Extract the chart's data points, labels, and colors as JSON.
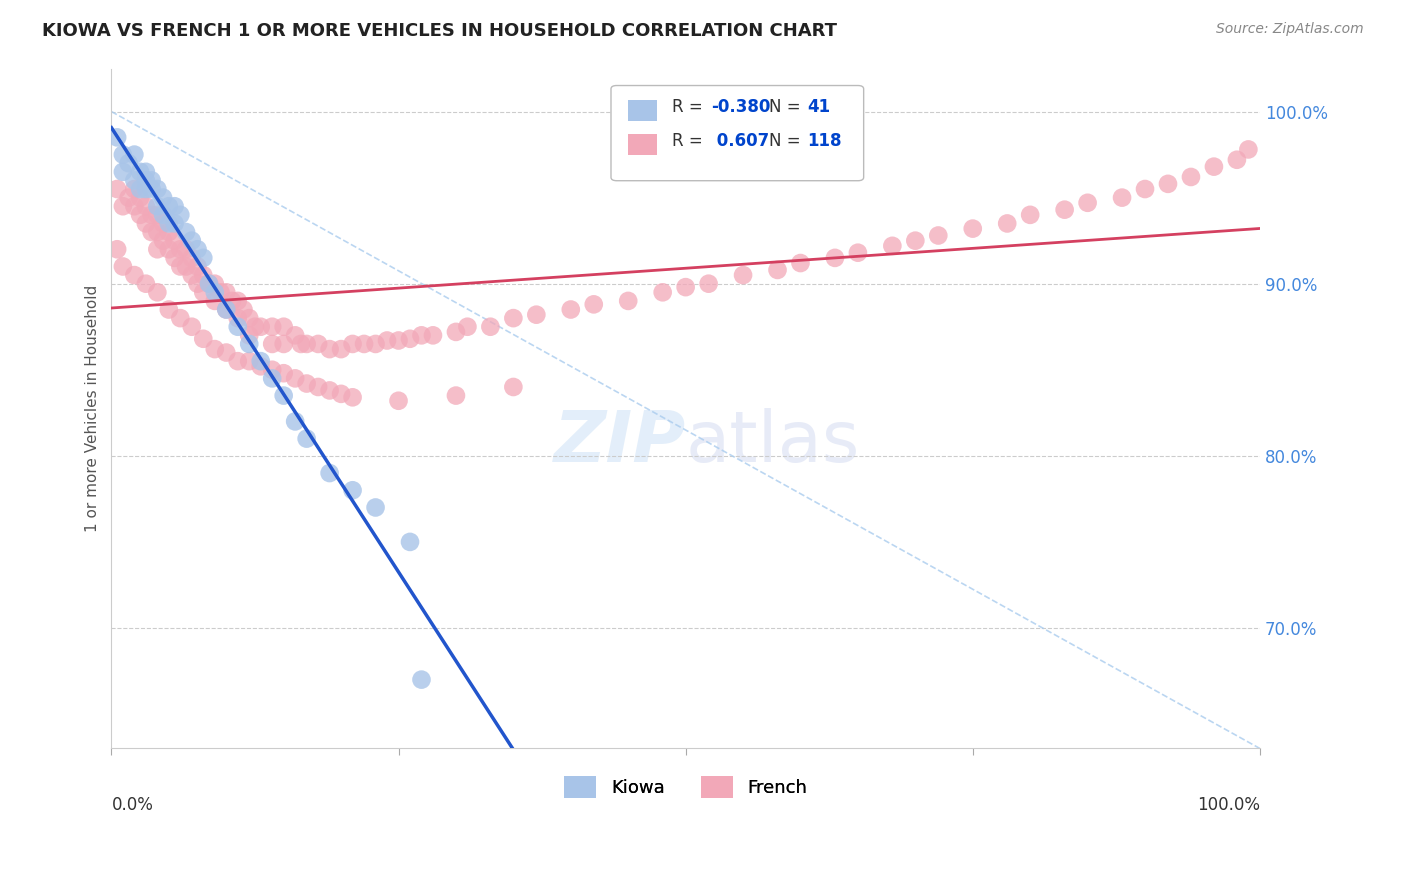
{
  "title": "KIOWA VS FRENCH 1 OR MORE VEHICLES IN HOUSEHOLD CORRELATION CHART",
  "source": "Source: ZipAtlas.com",
  "ylabel": "1 or more Vehicles in Household",
  "kiowa_R": -0.38,
  "kiowa_N": 41,
  "french_R": 0.607,
  "french_N": 118,
  "legend_label_kiowa": "Kiowa",
  "legend_label_french": "French",
  "kiowa_color": "#a8c4e8",
  "french_color": "#f2a8b8",
  "kiowa_line_color": "#2255cc",
  "french_line_color": "#d44060",
  "diagonal_color": "#aaccee",
  "bg_color": "#ffffff",
  "grid_color": "#cccccc",
  "xlim": [
    0.0,
    1.0
  ],
  "ylim": [
    0.63,
    1.025
  ],
  "yticks": [
    0.7,
    0.8,
    0.9,
    1.0
  ],
  "ytick_labels": [
    "70.0%",
    "80.0%",
    "90.0%",
    "100.0%"
  ],
  "kiowa_x": [
    0.005,
    0.01,
    0.01,
    0.015,
    0.02,
    0.02,
    0.025,
    0.025,
    0.03,
    0.03,
    0.03,
    0.035,
    0.035,
    0.04,
    0.04,
    0.045,
    0.045,
    0.05,
    0.05,
    0.055,
    0.055,
    0.06,
    0.065,
    0.07,
    0.075,
    0.08,
    0.085,
    0.09,
    0.1,
    0.11,
    0.12,
    0.13,
    0.14,
    0.15,
    0.16,
    0.17,
    0.19,
    0.21,
    0.23,
    0.26,
    0.27
  ],
  "kiowa_y": [
    0.985,
    0.975,
    0.965,
    0.97,
    0.975,
    0.96,
    0.965,
    0.955,
    0.965,
    0.96,
    0.955,
    0.96,
    0.955,
    0.955,
    0.945,
    0.95,
    0.94,
    0.945,
    0.935,
    0.945,
    0.935,
    0.94,
    0.93,
    0.925,
    0.92,
    0.915,
    0.9,
    0.895,
    0.885,
    0.875,
    0.865,
    0.855,
    0.845,
    0.835,
    0.82,
    0.81,
    0.79,
    0.78,
    0.77,
    0.75,
    0.67
  ],
  "french_x": [
    0.005,
    0.01,
    0.015,
    0.02,
    0.02,
    0.025,
    0.025,
    0.03,
    0.03,
    0.035,
    0.035,
    0.04,
    0.04,
    0.04,
    0.045,
    0.045,
    0.05,
    0.05,
    0.055,
    0.055,
    0.06,
    0.06,
    0.065,
    0.065,
    0.07,
    0.07,
    0.075,
    0.075,
    0.08,
    0.08,
    0.085,
    0.09,
    0.09,
    0.095,
    0.1,
    0.1,
    0.105,
    0.11,
    0.11,
    0.115,
    0.12,
    0.12,
    0.125,
    0.13,
    0.14,
    0.14,
    0.15,
    0.15,
    0.16,
    0.165,
    0.17,
    0.18,
    0.19,
    0.2,
    0.21,
    0.22,
    0.23,
    0.24,
    0.25,
    0.26,
    0.27,
    0.28,
    0.3,
    0.31,
    0.33,
    0.35,
    0.37,
    0.4,
    0.42,
    0.45,
    0.48,
    0.5,
    0.52,
    0.55,
    0.58,
    0.6,
    0.63,
    0.65,
    0.68,
    0.7,
    0.72,
    0.75,
    0.78,
    0.8,
    0.83,
    0.85,
    0.88,
    0.9,
    0.92,
    0.94,
    0.96,
    0.98,
    0.99,
    0.005,
    0.01,
    0.02,
    0.03,
    0.04,
    0.05,
    0.06,
    0.07,
    0.08,
    0.09,
    0.1,
    0.11,
    0.12,
    0.13,
    0.14,
    0.15,
    0.16,
    0.17,
    0.18,
    0.19,
    0.2,
    0.21,
    0.25,
    0.3,
    0.35
  ],
  "french_y": [
    0.955,
    0.945,
    0.95,
    0.955,
    0.945,
    0.95,
    0.94,
    0.945,
    0.935,
    0.94,
    0.93,
    0.94,
    0.93,
    0.92,
    0.935,
    0.925,
    0.93,
    0.92,
    0.925,
    0.915,
    0.92,
    0.91,
    0.92,
    0.91,
    0.915,
    0.905,
    0.91,
    0.9,
    0.905,
    0.895,
    0.9,
    0.9,
    0.89,
    0.895,
    0.895,
    0.885,
    0.89,
    0.89,
    0.88,
    0.885,
    0.88,
    0.87,
    0.875,
    0.875,
    0.875,
    0.865,
    0.875,
    0.865,
    0.87,
    0.865,
    0.865,
    0.865,
    0.862,
    0.862,
    0.865,
    0.865,
    0.865,
    0.867,
    0.867,
    0.868,
    0.87,
    0.87,
    0.872,
    0.875,
    0.875,
    0.88,
    0.882,
    0.885,
    0.888,
    0.89,
    0.895,
    0.898,
    0.9,
    0.905,
    0.908,
    0.912,
    0.915,
    0.918,
    0.922,
    0.925,
    0.928,
    0.932,
    0.935,
    0.94,
    0.943,
    0.947,
    0.95,
    0.955,
    0.958,
    0.962,
    0.968,
    0.972,
    0.978,
    0.92,
    0.91,
    0.905,
    0.9,
    0.895,
    0.885,
    0.88,
    0.875,
    0.868,
    0.862,
    0.86,
    0.855,
    0.855,
    0.852,
    0.85,
    0.848,
    0.845,
    0.842,
    0.84,
    0.838,
    0.836,
    0.834,
    0.832,
    0.835,
    0.84
  ]
}
